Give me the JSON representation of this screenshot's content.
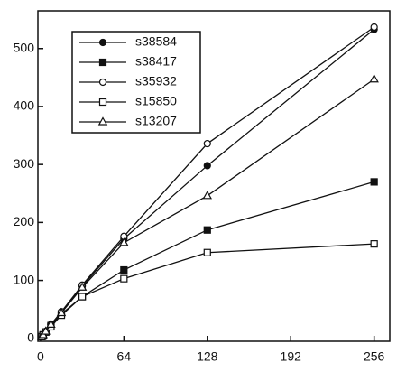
{
  "chart_data": {
    "type": "line",
    "x": [
      1,
      2,
      4,
      8,
      16,
      32,
      64,
      128,
      256
    ],
    "series": [
      {
        "name": "s38584",
        "color": "#111111",
        "marker": "circle",
        "filled": true,
        "values": [
          3,
          6,
          12,
          24,
          45,
          90,
          172,
          298,
          533
        ]
      },
      {
        "name": "s38417",
        "color": "#111111",
        "marker": "square",
        "filled": true,
        "values": [
          3,
          6,
          11,
          22,
          42,
          72,
          118,
          187,
          270
        ]
      },
      {
        "name": "s35932",
        "color": "#111111",
        "marker": "circle",
        "filled": false,
        "values": [
          3,
          6,
          12,
          24,
          46,
          92,
          176,
          336,
          537
        ]
      },
      {
        "name": "s15850",
        "color": "#111111",
        "marker": "square",
        "filled": false,
        "values": [
          3,
          6,
          11,
          20,
          40,
          72,
          103,
          148,
          163
        ]
      },
      {
        "name": "s13207",
        "color": "#111111",
        "marker": "triangle",
        "filled": false,
        "values": [
          3,
          6,
          12,
          24,
          44,
          88,
          165,
          246,
          447
        ]
      }
    ],
    "xlim": [
      -2,
      268
    ],
    "ylim": [
      -5,
      565
    ],
    "xticks": [
      0,
      64,
      128,
      192,
      256
    ],
    "yticks": [
      0,
      100,
      200,
      300,
      400,
      500
    ],
    "legend": "upper-left"
  }
}
